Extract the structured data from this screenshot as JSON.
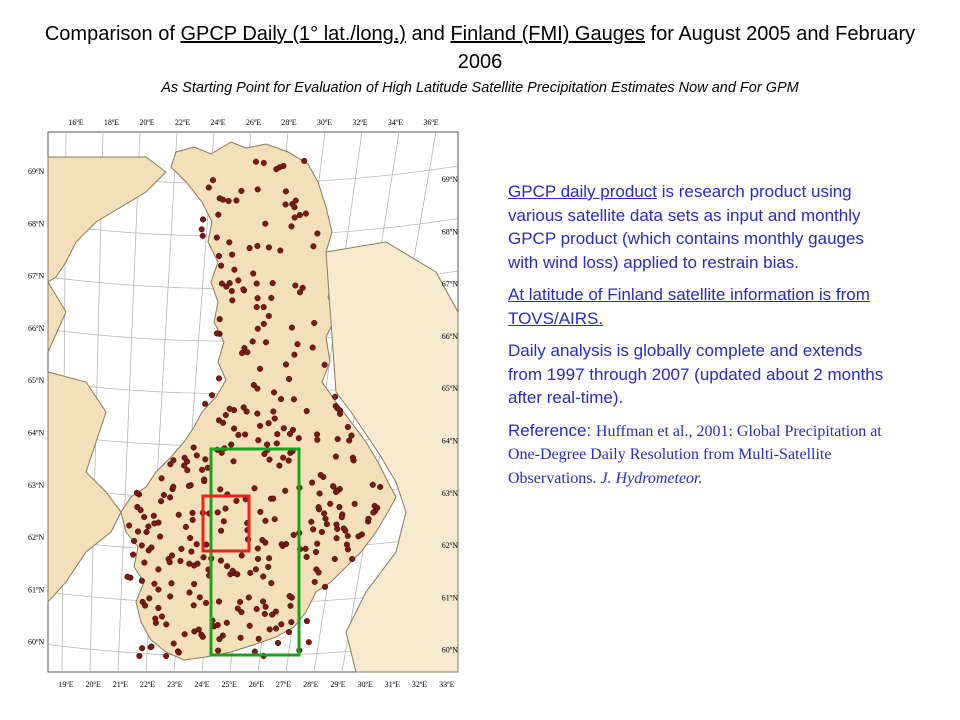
{
  "title": {
    "prefix": "Comparison of ",
    "link1": "GPCP Daily (1° lat./long.)",
    "middle": " and ",
    "link2": "Finland (FMI) Gauges",
    "suffix": " for August 2005 and February 2006"
  },
  "subtitle": "As Starting Point for Evaluation of High Latitude Satellite Precipitation Estimates Now and For GPM",
  "map": {
    "top_lon_labels": [
      "16ºE",
      "18ºE",
      "20ºE",
      "22ºE",
      "24ºE",
      "26ºE",
      "28ºE",
      "30ºE",
      "32ºE",
      "34ºE",
      "36ºE"
    ],
    "bottom_lon_labels": [
      "19ºE",
      "20ºE",
      "21ºE",
      "22ºE",
      "23ºE",
      "24ºE",
      "25ºE",
      "26ºE",
      "27ºE",
      "28ºE",
      "29ºE",
      "30ºE",
      "31ºE",
      "32ºE",
      "33ºE"
    ],
    "left_lat_labels": [
      "69ºN",
      "68ºN",
      "67ºN",
      "66ºN",
      "65ºN",
      "64ºN",
      "63ºN",
      "62ºN",
      "61ºN",
      "60ºN"
    ],
    "right_lat_labels": [
      "69ºN",
      "68ºN",
      "67ºN",
      "66ºN",
      "65ºN",
      "64ºN",
      "63ºN",
      "62ºN",
      "61ºN",
      "60ºN"
    ],
    "colors": {
      "land": "#f3dfb9",
      "sea": "#ffffff",
      "border": "#8a7a5a",
      "grid": "#b5b5b5",
      "station": "#7a1a14",
      "green_box": "#17a21f",
      "red_box": "#e3251a"
    }
  },
  "panel": {
    "p1_link": "GPCP daily product",
    "p1_text": " is research product using various satellite data sets as input and monthly GPCP product (which contains monthly gauges with wind loss) applied to restrain bias.",
    "p2_link": "At latitude of Finland satellite information is from TOVS/AIRS.",
    "p3_text": "Daily analysis is globally complete and extends from 1997 through 2007 (updated about 2 months after real-time).",
    "ref_label": "Reference: ",
    "ref_text": "Huffman et al., 2001:  Global Precipitation at One-Degree Daily Resolution from Multi-Satellite Observations. ",
    "ref_journal": "J. Hydrometeor."
  }
}
